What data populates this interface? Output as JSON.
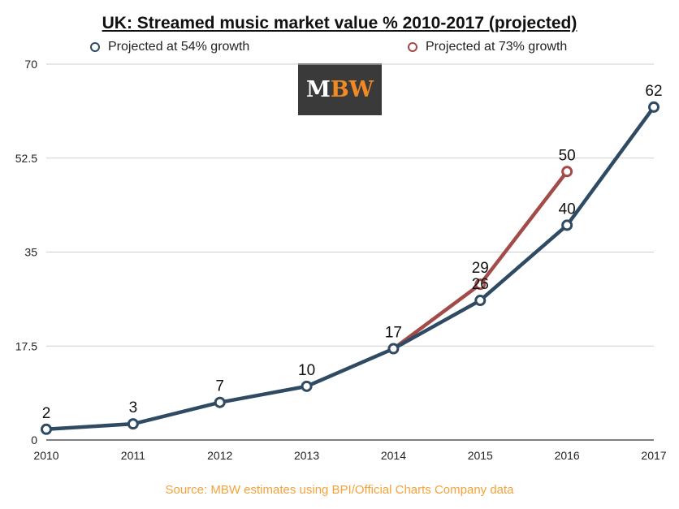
{
  "colors": {
    "series_54": "#2f4b63",
    "series_73": "#a34b48",
    "source_text": "#f5a23a",
    "logo_bg": "#3a3a3a",
    "logo_accent": "#f08a24"
  },
  "logo": {
    "part1": "M",
    "part2": "BW"
  },
  "source_note": "Source: MBW estimates using BPI/Official Charts Company data",
  "chart_data": {
    "type": "line",
    "title": "UK: Streamed music market value % 2010-2017 (projected)",
    "xlabel": "",
    "ylabel": "",
    "categories": [
      "2010",
      "2011",
      "2012",
      "2013",
      "2014",
      "2015",
      "2016",
      "2017"
    ],
    "yticks": [
      "0",
      "17.5",
      "35",
      "52.5",
      "70"
    ],
    "ylim": [
      0,
      70
    ],
    "grid": true,
    "legend_position": "top",
    "series": [
      {
        "name": "Projected at 54% growth",
        "color": "#2f4b63",
        "values": [
          2,
          3,
          7,
          10,
          17,
          26,
          40,
          62
        ],
        "labels": [
          "2",
          "3",
          "7",
          "10",
          "17",
          "26",
          "40",
          "62"
        ]
      },
      {
        "name": "Projected at 73% growth",
        "color": "#a34b48",
        "values": [
          null,
          null,
          null,
          null,
          17,
          29,
          50,
          null
        ],
        "labels": [
          "",
          "",
          "",
          "",
          "",
          "29",
          "50",
          ""
        ]
      }
    ]
  }
}
